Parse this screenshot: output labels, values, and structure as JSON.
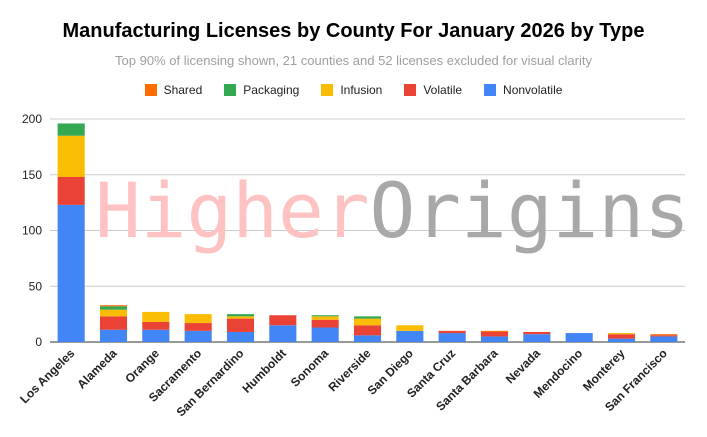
{
  "chart_data": {
    "type": "bar",
    "stacked": true,
    "title": "Manufacturing Licenses by County For January 2026 by Type",
    "subtitle": "Top 90% of licensing shown, 21 counties and 52 licenses excluded for visual clarity",
    "watermark": {
      "first": "Higher",
      "second": "Origins",
      "first_color": "#ffc2c2",
      "second_color": "#a8a8a8"
    },
    "categories": [
      "Los Angeles",
      "Alameda",
      "Orange",
      "Sacramento",
      "San Bernardino",
      "Humboldt",
      "Sonoma",
      "Riverside",
      "San Diego",
      "Santa Cruz",
      "Santa Barbara",
      "Nevada",
      "Mendocino",
      "Monterey",
      "San Francisco"
    ],
    "ylim": [
      0,
      200
    ],
    "yticks": [
      0,
      50,
      100,
      150,
      200
    ],
    "grid": true,
    "legend_position": "top",
    "series": [
      {
        "name": "Nonvolatile",
        "color": "#4285f4",
        "values": [
          123,
          11,
          11,
          10,
          9,
          15,
          13,
          6,
          10,
          8,
          5,
          7,
          8,
          3,
          5
        ]
      },
      {
        "name": "Volatile",
        "color": "#ea4335",
        "values": [
          25,
          12,
          7,
          7,
          12,
          9,
          7,
          9,
          0,
          2,
          4,
          2,
          0,
          4,
          1
        ]
      },
      {
        "name": "Infusion",
        "color": "#fbbc04",
        "values": [
          37,
          6,
          9,
          8,
          2,
          0,
          3,
          6,
          5,
          0,
          0,
          0,
          0,
          1,
          0
        ]
      },
      {
        "name": "Packaging",
        "color": "#34a853",
        "values": [
          11,
          3,
          0,
          0,
          2,
          0,
          1,
          2,
          0,
          0,
          0,
          0,
          0,
          0,
          0
        ]
      },
      {
        "name": "Shared",
        "color": "#ff6d01",
        "values": [
          0,
          1,
          0,
          0,
          0,
          0,
          0,
          0,
          0,
          0,
          1,
          0,
          0,
          0,
          1
        ]
      }
    ]
  }
}
